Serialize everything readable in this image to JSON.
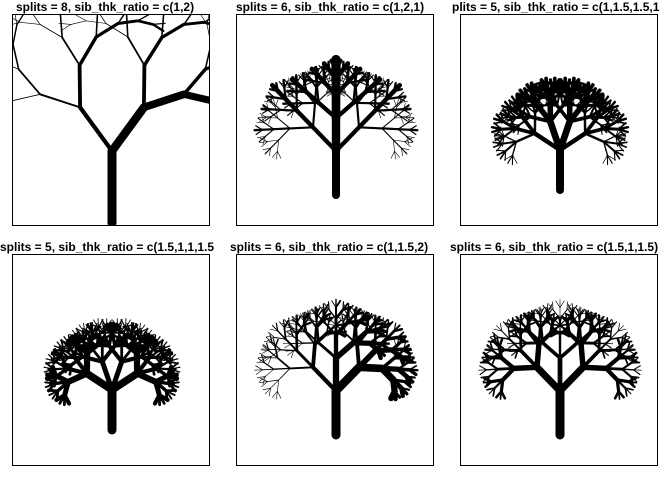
{
  "panels": [
    {
      "title": "splits = 8, sib_thk_ratio = c(1,2)",
      "splits": 8,
      "ratio": [
        1,
        2
      ]
    },
    {
      "title": "splits = 6, sib_thk_ratio = c(1,2,1)",
      "splits": 6,
      "ratio": [
        1,
        2,
        1
      ]
    },
    {
      "title": "plits = 5, sib_thk_ratio = c(1,1.5,1.5,1",
      "splits": 5,
      "ratio": [
        1,
        1.5,
        1.5,
        1
      ]
    },
    {
      "title": "splits = 5, sib_thk_ratio = c(1.5,1,1,1.5",
      "splits": 5,
      "ratio": [
        1.5,
        1,
        1,
        1.5
      ]
    },
    {
      "title": "splits = 6, sib_thk_ratio = c(1,1.5,2)",
      "splits": 6,
      "ratio": [
        1,
        1.5,
        2
      ]
    },
    {
      "title": "splits = 6, sib_thk_ratio = c(1.5,1,1.5)",
      "splits": 6,
      "ratio": [
        1.5,
        1,
        1.5
      ]
    }
  ],
  "colors": {
    "ink": "#000000",
    "background": "#ffffff"
  }
}
